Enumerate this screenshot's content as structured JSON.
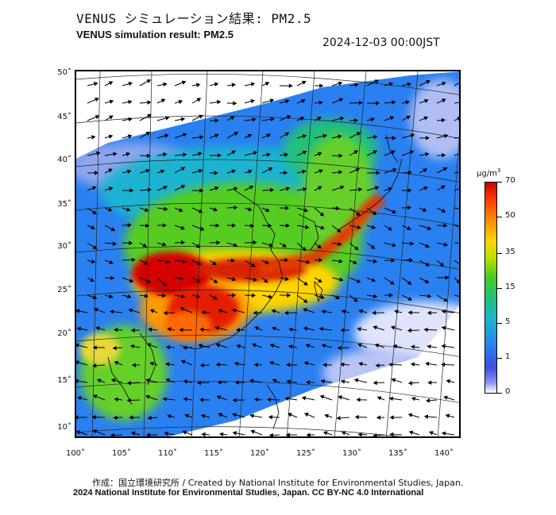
{
  "header": {
    "title_jp": "VENUS シミュレーション結果: PM2.5",
    "title_en": "VENUS simulation result: PM2.5",
    "timestamp": "2024-12-03 00:00JST"
  },
  "map": {
    "lat_labels": [
      "50˚",
      "45˚",
      "40˚",
      "35˚",
      "30˚",
      "25˚",
      "20˚",
      "15˚",
      "10˚"
    ],
    "lon_labels": [
      "100˚",
      "105˚",
      "110˚",
      "115˚",
      "120˚",
      "125˚",
      "130˚",
      "135˚",
      "140˚"
    ],
    "colors": {
      "very_high": "#d40000",
      "high": "#ff8c00",
      "mid": "#55cc22",
      "low": "#2a80f0",
      "very_low": "#dfe4fb"
    }
  },
  "colorbar": {
    "unit_base": "μg/m",
    "unit_exp": "3",
    "ticks": [
      "70",
      "50",
      "35",
      "15",
      "5",
      "1",
      "0"
    ]
  },
  "footer": {
    "credit_jp": "作成：国立環境研究所 / Created by National Institute for Environmental Studies, Japan.",
    "credit_en": "2024 National Institute for Environmental Studies, Japan. CC BY-NC 4.0 International"
  }
}
